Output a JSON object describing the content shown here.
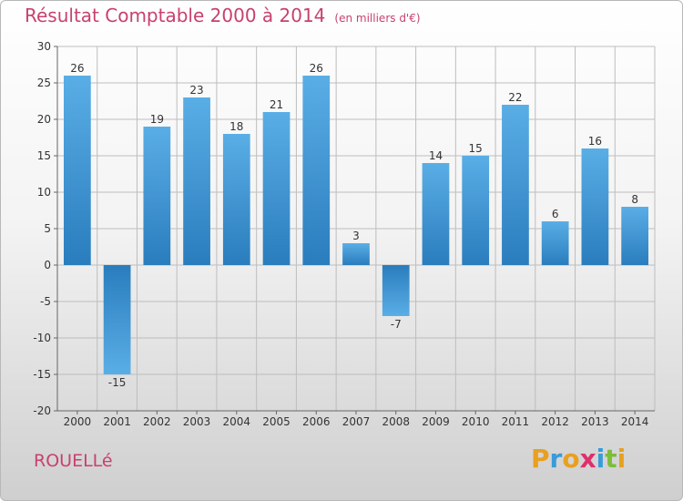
{
  "title": "Résultat Comptable 2000 à 2014",
  "unit": "(en milliers d'€)",
  "place": "ROUELLé",
  "brand": {
    "letters": [
      "P",
      "r",
      "o",
      "x",
      "i",
      "t",
      "i"
    ],
    "colors": [
      "#e8a020",
      "#3a9bd8",
      "#e8a020",
      "#e0306a",
      "#3a9bd8",
      "#7cbd3a",
      "#e8a020"
    ]
  },
  "colors": {
    "bar_top": "#5aaee6",
    "bar_bottom": "#2a7dbd",
    "grid": "#bdbdbd",
    "title": "#c8416d"
  },
  "chart_data": {
    "type": "bar",
    "categories": [
      "2000",
      "2001",
      "2002",
      "2003",
      "2004",
      "2005",
      "2006",
      "2007",
      "2008",
      "2009",
      "2010",
      "2011",
      "2012",
      "2013",
      "2014"
    ],
    "values": [
      26,
      -15,
      19,
      23,
      18,
      21,
      26,
      3,
      -7,
      14,
      15,
      22,
      6,
      16,
      8
    ],
    "value_labels": [
      "26",
      "-15",
      "19",
      "23",
      "18",
      "21",
      "26",
      "3",
      "-7",
      "14",
      "15",
      "22",
      "6",
      "16",
      "8"
    ],
    "ylim": [
      -20,
      30
    ],
    "yticks": [
      30,
      25,
      20,
      15,
      10,
      5,
      0,
      -5,
      -10,
      -15,
      -20
    ],
    "grid": true,
    "xlabel": "",
    "ylabel": ""
  }
}
